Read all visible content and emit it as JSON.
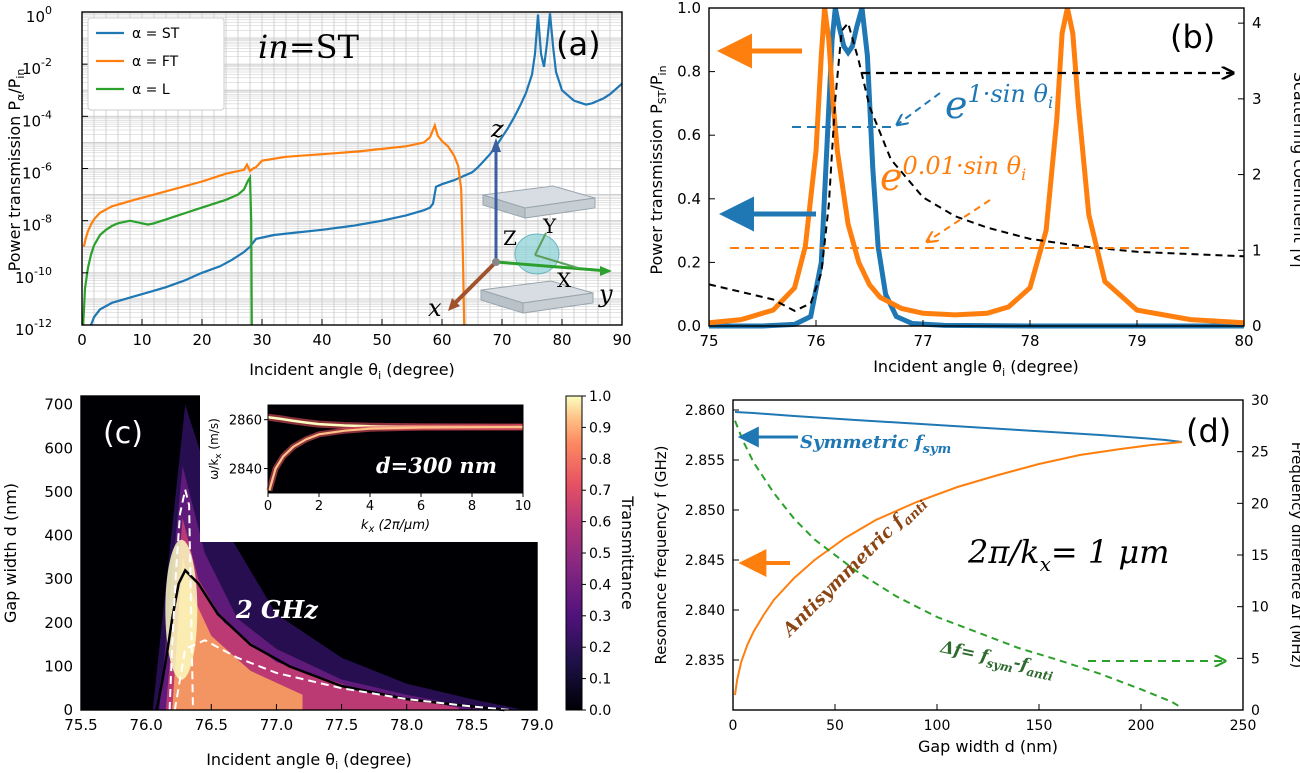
{
  "colors": {
    "st": "#1f77b4",
    "ft": "#ff7f0e",
    "l": "#2ca02c",
    "black": "#000000",
    "grid": "#c8c8c8",
    "axis": "#333333"
  },
  "chart_data": [
    {
      "panel": "a",
      "type": "line",
      "tag": "(a)",
      "annotation": "in=ST",
      "annotation_italic": "in",
      "annotation_rest": "=ST",
      "xlabel": "Incident angle θ",
      "xlabel_sub": "i",
      "xlabel_unit": " (degree)",
      "ylabel": "Power transmission P",
      "ylabel_sub": "α",
      "ylabel_div": "/P",
      "ylabel_sub2": "in",
      "xlim": [
        0,
        90
      ],
      "ylim_log10": [
        -12,
        0
      ],
      "yscale": "log",
      "xticks": [
        "0",
        "10",
        "20",
        "30",
        "40",
        "50",
        "60",
        "70",
        "80",
        "90"
      ],
      "xtick_values": [
        0,
        10,
        20,
        30,
        40,
        50,
        60,
        70,
        80,
        90
      ],
      "ytick_exponents": [
        -12,
        -10,
        -8,
        -6,
        -4,
        -2,
        0
      ],
      "ytick_base": "10",
      "ytick_labels": [
        "-12",
        "-10",
        "-8",
        "-6",
        "-4",
        "-2",
        "0"
      ],
      "legend": [
        "α = ST",
        "α = FT",
        "α = L"
      ],
      "legend_position": "top-left",
      "inset_axes": [
        "z",
        "x",
        "y",
        "X",
        "Y",
        "Z"
      ],
      "series": [
        {
          "name": "α = ST",
          "color": "#1f77b4",
          "x": [
            1.5,
            2,
            3,
            5,
            8,
            11,
            14,
            17,
            20,
            23,
            25,
            27,
            28,
            29,
            32,
            36,
            40,
            45,
            50,
            54,
            57,
            58,
            58.5,
            59,
            60,
            62,
            64,
            65,
            66,
            67,
            68,
            69,
            70,
            71,
            72,
            73,
            74,
            75,
            75.5,
            76,
            76.5,
            77,
            77.5,
            78,
            78.5,
            79,
            80,
            82,
            84,
            85,
            86,
            87,
            88,
            89,
            90
          ],
          "log10y": [
            -12,
            -11.7,
            -11.4,
            -11.15,
            -10.95,
            -10.75,
            -10.55,
            -10.3,
            -10.0,
            -9.75,
            -9.5,
            -9.2,
            -9.0,
            -8.7,
            -8.55,
            -8.45,
            -8.35,
            -8.2,
            -8.0,
            -7.8,
            -7.6,
            -7.5,
            -7.35,
            -6.7,
            -6.6,
            -6.45,
            -6.25,
            -6.15,
            -5.95,
            -5.7,
            -5.45,
            -5.15,
            -4.8,
            -4.45,
            -4.05,
            -3.6,
            -3.1,
            -2.4,
            -1.6,
            -0.1,
            -1.6,
            -2.1,
            -1.2,
            -0.05,
            -1.3,
            -2.3,
            -3.0,
            -3.4,
            -3.55,
            -3.5,
            -3.4,
            -3.3,
            -3.15,
            -2.95,
            -2.75
          ]
        },
        {
          "name": "α = FT",
          "color": "#ff7f0e",
          "x": [
            0.3,
            0.6,
            1,
            1.5,
            2,
            3,
            5,
            8,
            12,
            16,
            20,
            24,
            27,
            27.5,
            28,
            28.5,
            29,
            30,
            34,
            40,
            46,
            50,
            54,
            57,
            58,
            58.8,
            59.3,
            60,
            61,
            62,
            62.7,
            63.2,
            63.5,
            63.7
          ],
          "log10y": [
            -9.0,
            -8.7,
            -8.4,
            -8.15,
            -7.95,
            -7.7,
            -7.45,
            -7.25,
            -7.0,
            -6.75,
            -6.5,
            -6.2,
            -6.05,
            -5.85,
            -6.1,
            -6.0,
            -5.95,
            -5.7,
            -5.55,
            -5.45,
            -5.35,
            -5.25,
            -5.15,
            -5.0,
            -4.8,
            -4.35,
            -4.75,
            -4.95,
            -5.15,
            -5.5,
            -5.9,
            -6.8,
            -9.5,
            -12
          ]
        },
        {
          "name": "α = L",
          "color": "#2ca02c",
          "x": [
            0.2,
            0.5,
            1,
            1.5,
            2,
            3,
            4,
            5,
            6,
            8,
            10,
            11,
            12,
            14,
            16,
            18,
            20,
            22,
            24,
            26,
            27,
            27.6,
            28,
            28.2,
            28.3
          ],
          "log10y": [
            -12,
            -10.6,
            -9.8,
            -9.3,
            -8.95,
            -8.55,
            -8.35,
            -8.2,
            -8.1,
            -8.0,
            -8.1,
            -8.15,
            -8.1,
            -7.95,
            -7.8,
            -7.65,
            -7.5,
            -7.35,
            -7.2,
            -7.0,
            -6.8,
            -6.5,
            -6.35,
            -8,
            -12
          ]
        }
      ]
    },
    {
      "panel": "b",
      "type": "line",
      "tag": "(b)",
      "xlabel": "Incident angle θ",
      "xlabel_sub": "i",
      "xlabel_unit": " (degree)",
      "ylabel": "Power transmission P",
      "ylabel_sub": "ST",
      "ylabel_div": "/P",
      "ylabel_sub2": "in",
      "y2label": "Scattering coefficient |v̄|",
      "xlim": [
        75,
        80
      ],
      "ylim": [
        0,
        1.0
      ],
      "y2lim": [
        0,
        4.2
      ],
      "xticks": [
        "75",
        "76",
        "77",
        "78",
        "79",
        "80"
      ],
      "xtick_values": [
        75,
        76,
        77,
        78,
        79,
        80
      ],
      "yticks": [
        "0.0",
        "0.2",
        "0.4",
        "0.6",
        "0.8",
        "1.0"
      ],
      "ytick_values": [
        0,
        0.2,
        0.4,
        0.6,
        0.8,
        1.0
      ],
      "y2ticks": [
        "0",
        "1",
        "2",
        "3",
        "4"
      ],
      "y2tick_values": [
        0,
        1,
        2,
        3,
        4
      ],
      "annotation_blue_base": "e",
      "annotation_blue_exp": "1·sin θ",
      "annotation_blue_sub": "i",
      "annotation_orange_base": "e",
      "annotation_orange_exp": "0.01·sin θ",
      "annotation_orange_sub": "i",
      "series": [
        {
          "name": "ST (e^{1·sinθ})",
          "color": "#1f77b4",
          "axis": "left",
          "x": [
            75,
            75.5,
            75.8,
            75.95,
            76.05,
            76.1,
            76.15,
            76.18,
            76.21,
            76.26,
            76.3,
            76.34,
            76.38,
            76.43,
            76.48,
            76.53,
            76.58,
            76.65,
            76.75,
            76.9,
            77.2,
            78,
            80
          ],
          "y": [
            0,
            0,
            0.005,
            0.03,
            0.2,
            0.55,
            0.9,
            1.0,
            0.95,
            0.88,
            0.86,
            0.88,
            0.94,
            1.0,
            0.85,
            0.5,
            0.25,
            0.1,
            0.03,
            0.008,
            0.002,
            0.0,
            0.0
          ]
        },
        {
          "name": "FT (e^{0.01·sinθ})",
          "color": "#ff7f0e",
          "axis": "left",
          "x": [
            75,
            75.3,
            75.6,
            75.8,
            75.9,
            76.0,
            76.05,
            76.08,
            76.12,
            76.16,
            76.2,
            76.3,
            76.4,
            76.5,
            76.6,
            76.8,
            77.0,
            77.3,
            77.6,
            77.8,
            78.0,
            78.15,
            78.25,
            78.3,
            78.35,
            78.4,
            78.45,
            78.55,
            78.7,
            79.0,
            79.5,
            80
          ],
          "y": [
            0.01,
            0.02,
            0.05,
            0.12,
            0.25,
            0.55,
            0.85,
            1.0,
            0.9,
            0.7,
            0.55,
            0.32,
            0.2,
            0.13,
            0.09,
            0.055,
            0.04,
            0.035,
            0.04,
            0.06,
            0.12,
            0.3,
            0.65,
            0.92,
            1.0,
            0.92,
            0.7,
            0.35,
            0.14,
            0.05,
            0.02,
            0.01
          ]
        },
        {
          "name": "Scattering coefficient",
          "color": "#000000",
          "axis": "right",
          "dashed": true,
          "x": [
            75,
            75.3,
            75.6,
            75.8,
            75.95,
            76.05,
            76.12,
            76.18,
            76.24,
            76.3,
            76.4,
            76.5,
            76.7,
            77.0,
            77.3,
            77.6,
            78.0,
            78.5,
            79.0,
            79.5,
            80
          ],
          "y": [
            0.55,
            0.45,
            0.35,
            0.2,
            0.3,
            0.7,
            1.6,
            3.0,
            3.9,
            4.0,
            3.5,
            2.9,
            2.2,
            1.7,
            1.45,
            1.3,
            1.15,
            1.05,
            0.98,
            0.95,
            0.92
          ]
        }
      ]
    },
    {
      "panel": "c",
      "type": "heatmap",
      "tag": "(c)",
      "annotation": "2 GHz",
      "xlabel": "Incident angle θ",
      "xlabel_sub": "i",
      "xlabel_unit": " (degree)",
      "ylabel": "Gap width d (nm)",
      "colorbar_label": "Transmittance",
      "xlim": [
        75.5,
        79.0
      ],
      "ylim": [
        0,
        720
      ],
      "xticks": [
        "75.5",
        "76.0",
        "76.5",
        "77.0",
        "77.5",
        "78.0",
        "78.5",
        "79.0"
      ],
      "xtick_values": [
        75.5,
        76.0,
        76.5,
        77.0,
        77.5,
        78.0,
        78.5,
        79.0
      ],
      "yticks": [
        "0",
        "100",
        "200",
        "300",
        "400",
        "500",
        "600",
        "700"
      ],
      "ytick_values": [
        0,
        100,
        200,
        300,
        400,
        500,
        600,
        700
      ],
      "cbar_ticks": [
        "0.0",
        "0.1",
        "0.2",
        "0.3",
        "0.4",
        "0.5",
        "0.6",
        "0.7",
        "0.8",
        "0.9",
        "1.0"
      ],
      "cbar_values": [
        0,
        0.1,
        0.2,
        0.3,
        0.4,
        0.5,
        0.6,
        0.7,
        0.8,
        0.9,
        1.0
      ],
      "peak_line": {
        "theta": [
          76.08,
          76.12,
          76.16,
          76.2,
          76.25,
          76.3,
          76.4,
          76.55,
          76.8,
          77.1,
          77.5,
          78.0,
          78.5,
          78.75
        ],
        "d": [
          0,
          60,
          130,
          210,
          290,
          320,
          290,
          220,
          150,
          100,
          55,
          25,
          8,
          0
        ]
      },
      "dashed_contours": [
        {
          "theta": [
            76.18,
            76.2,
            76.23,
            76.26,
            76.3,
            76.33,
            76.36
          ],
          "d": [
            0,
            150,
            320,
            450,
            505,
            470,
            0
          ]
        },
        {
          "theta": [
            76.22,
            76.3,
            76.45,
            76.7,
            77.0,
            77.5,
            78.0,
            78.5,
            78.8
          ],
          "d": [
            0,
            140,
            160,
            120,
            85,
            50,
            25,
            8,
            0
          ]
        }
      ],
      "inset": {
        "label": "d=300 nm",
        "xlabel": "k",
        "xlabel_sub": "x",
        "xlabel_unit": " (2π/μm)",
        "ylabel": "ω/k",
        "ylabel_sub": "x",
        "ylabel_unit": " (m/s)",
        "xlim": [
          0,
          10
        ],
        "ylim": [
          2830,
          2866
        ],
        "xticks": [
          "0",
          "2",
          "4",
          "6",
          "8",
          "10"
        ],
        "xtick_values": [
          0,
          2,
          4,
          6,
          8,
          10
        ],
        "yticks": [
          "2840",
          "2860"
        ],
        "ytick_values": [
          2840,
          2860
        ],
        "upper_branch": {
          "x": [
            0,
            0.5,
            1,
            1.5,
            2,
            3,
            4,
            6,
            10
          ],
          "y": [
            2861,
            2860.3,
            2859.5,
            2858.8,
            2858.2,
            2857.6,
            2857.3,
            2857.1,
            2857
          ]
        },
        "lower_branch": {
          "x": [
            0.05,
            0.3,
            0.6,
            1,
            1.5,
            2,
            3,
            4,
            6,
            10
          ],
          "y": [
            2831,
            2840,
            2845,
            2849,
            2852,
            2854,
            2855.5,
            2856.3,
            2856.8,
            2857
          ]
        }
      }
    },
    {
      "panel": "d",
      "type": "line",
      "tag": "(d)",
      "xlabel": "Gap width d (nm)",
      "ylabel": "Resonance frequency f (GHz)",
      "y2label": "Frequency difference Δf (MHz)",
      "xlim": [
        0,
        250
      ],
      "ylim": [
        2.83,
        2.861
      ],
      "y2lim": [
        0,
        30
      ],
      "xticks": [
        "0",
        "50",
        "100",
        "150",
        "200",
        "250"
      ],
      "xtick_values": [
        0,
        50,
        100,
        150,
        200,
        250
      ],
      "yticks": [
        "2.835",
        "2.840",
        "2.845",
        "2.850",
        "2.855",
        "2.860"
      ],
      "ytick_values": [
        2.835,
        2.84,
        2.845,
        2.85,
        2.855,
        2.86
      ],
      "y2ticks": [
        "0",
        "5",
        "10",
        "15",
        "20",
        "25",
        "30"
      ],
      "y2tick_values": [
        0,
        5,
        10,
        15,
        20,
        25,
        30
      ],
      "annotation_kx": "2π/k",
      "annotation_kx_sub": "x",
      "annotation_kx_rest": "= 1 μm",
      "label_sym": "Symmetric f",
      "label_sym_sub": "sym",
      "label_anti": "Antisymmetric f",
      "label_anti_sub": "anti",
      "label_df": "Δf= f",
      "label_df_sub1": "sym",
      "label_df_mid": "-f",
      "label_df_sub2": "anti",
      "series": [
        {
          "name": "Symmetric f_sym",
          "color": "#1f77b4",
          "axis": "left",
          "x": [
            1,
            10,
            30,
            60,
            100,
            140,
            180,
            200,
            212,
            220
          ],
          "y": [
            2.8598,
            2.8597,
            2.8594,
            2.859,
            2.8585,
            2.858,
            2.8575,
            2.8572,
            2.857,
            2.8568
          ]
        },
        {
          "name": "Antisymmetric f_anti",
          "color": "#ff7f0e",
          "axis": "left",
          "x": [
            1,
            2,
            4,
            7,
            10,
            15,
            20,
            30,
            40,
            55,
            70,
            90,
            110,
            130,
            150,
            170,
            190,
            205,
            215,
            220
          ],
          "y": [
            2.8315,
            2.833,
            2.8348,
            2.8365,
            2.8378,
            2.8395,
            2.841,
            2.8432,
            2.845,
            2.8472,
            2.849,
            2.8508,
            2.8523,
            2.8535,
            2.8546,
            2.8555,
            2.8561,
            2.8565,
            2.8567,
            2.8568
          ]
        },
        {
          "name": "Δf",
          "color": "#2ca02c",
          "axis": "right",
          "dashed": true,
          "x": [
            1,
            5,
            10,
            20,
            30,
            40,
            60,
            80,
            100,
            120,
            140,
            160,
            180,
            200,
            215,
            220
          ],
          "y": [
            28,
            26,
            24,
            21,
            18.5,
            16.5,
            13.5,
            11,
            9,
            7.5,
            6,
            4.8,
            3.5,
            2,
            0.8,
            0.2
          ]
        }
      ]
    }
  ]
}
